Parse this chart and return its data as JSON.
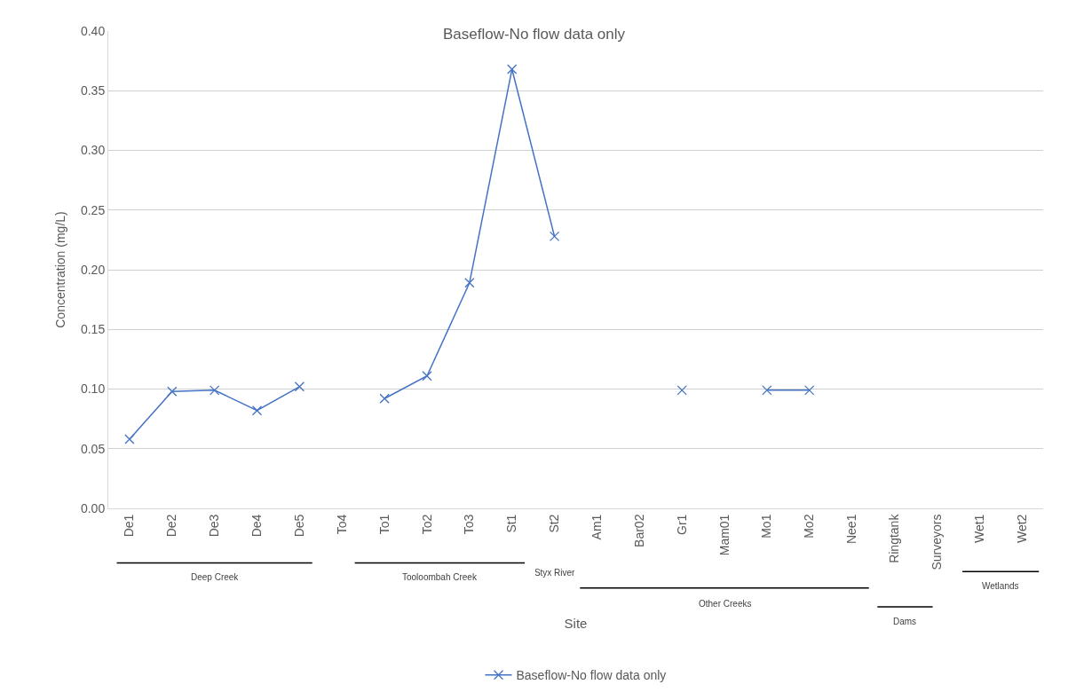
{
  "chart_data": {
    "type": "line",
    "title": "Baseflow-No flow data only",
    "xlabel": "Site",
    "ylabel": "Concentration (mg/L)",
    "categories": [
      "De1",
      "De2",
      "De3",
      "De4",
      "De5",
      "To4",
      "To1",
      "To2",
      "To3",
      "St1",
      "St2",
      "Am1",
      "Bar02",
      "Gr1",
      "Mam01",
      "Mo1",
      "Mo2",
      "Nee1",
      "Ringtank",
      "Surveyors",
      "Wet1",
      "Wet2"
    ],
    "series": [
      {
        "name": "Baseflow-No flow data only",
        "color": "#4472c4",
        "values": [
          0.058,
          0.098,
          0.099,
          0.082,
          0.102,
          null,
          0.092,
          0.111,
          0.189,
          0.368,
          0.228,
          null,
          null,
          0.099,
          null,
          0.099,
          0.099,
          null,
          null,
          null,
          null,
          null
        ]
      }
    ],
    "annotations": [
      "Deep Creek",
      "Tooloombah Creek",
      "Styx River",
      "Other Creeks",
      "Dams",
      "Wetlands"
    ],
    "ylim": [
      0,
      0.4
    ],
    "yticks": [
      {
        "value": 0,
        "label": "0.00"
      },
      {
        "value": 0.05,
        "label": "0.05"
      },
      {
        "value": 0.1,
        "label": "0.10"
      },
      {
        "value": 0.15,
        "label": "0.15"
      },
      {
        "value": 0.2,
        "label": "0.20"
      },
      {
        "value": 0.25,
        "label": "0.25"
      },
      {
        "value": 0.3,
        "label": "0.30"
      },
      {
        "value": 0.35,
        "label": "0.35"
      },
      {
        "value": 0.4,
        "label": "0.40"
      }
    ],
    "grid": "y",
    "legend": "bottom",
    "marker": "cross",
    "line_style": "solid"
  }
}
